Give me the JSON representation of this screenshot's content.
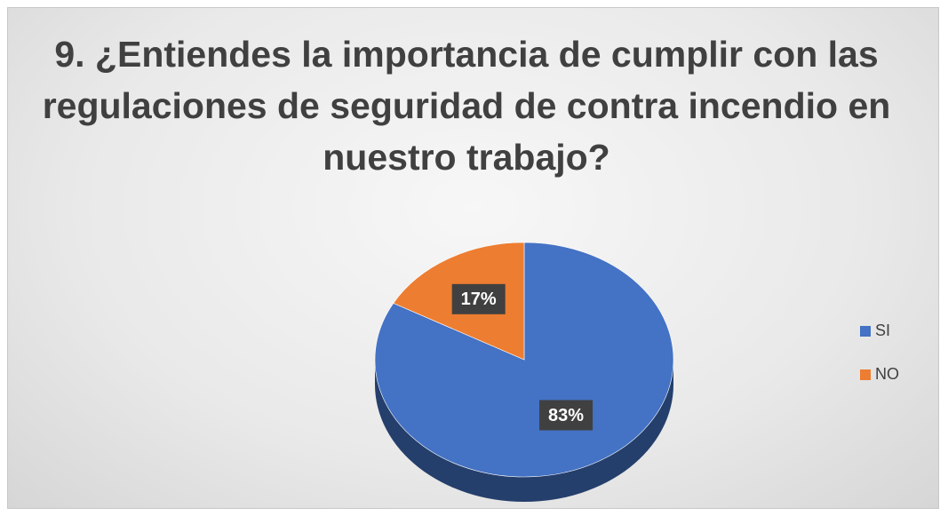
{
  "chart_data": {
    "type": "pie",
    "title": "9. ¿Entiendes la importancia de cumplir con las regulaciones de seguridad de contra incendio en nuestro trabajo?",
    "categories": [
      "SI",
      "NO"
    ],
    "values": [
      83,
      17
    ],
    "value_labels": [
      "83%",
      "17%"
    ],
    "colors": [
      "#4472c4",
      "#ed7d31"
    ],
    "legend": "right"
  }
}
